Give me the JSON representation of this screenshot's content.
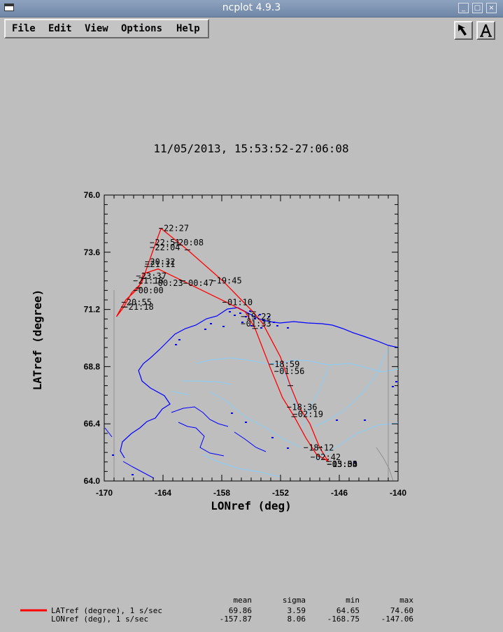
{
  "window": {
    "title": "ncplot 4.9.3"
  },
  "menu": {
    "items": [
      "File",
      "Edit",
      "View",
      "Options",
      "Help"
    ]
  },
  "toolbar": {
    "pointer_icon": "arrow-pointer-icon",
    "text_icon": "text-annotate-icon"
  },
  "chart_data": {
    "type": "line",
    "title": "11/05/2013, 15:53:52-27:06:08",
    "xlabel": "LONref (deg)",
    "ylabel": "LATref (degree)",
    "xlim": [
      -170,
      -140
    ],
    "ylim": [
      64.0,
      76.0
    ],
    "xticks": [
      "-170",
      "-164",
      "-158",
      "-152",
      "-146",
      "-140"
    ],
    "yticks": [
      "64.0",
      "66.4",
      "68.8",
      "71.2",
      "73.6",
      "76.0"
    ],
    "grid": false,
    "track_color": "#ff0000",
    "map_coast_color": "#0000ff",
    "map_river_color": "#87cefa",
    "track": [
      [
        -147.1,
        64.8
      ],
      [
        -148.0,
        65.4
      ],
      [
        -149.0,
        66.4
      ],
      [
        -150.1,
        67.1
      ],
      [
        -151.0,
        68.0
      ],
      [
        -152.0,
        69.2
      ],
      [
        -153.8,
        70.6
      ],
      [
        -154.8,
        71.1
      ],
      [
        -156.0,
        71.6
      ],
      [
        -157.9,
        72.4
      ],
      [
        -161.5,
        73.7
      ],
      [
        -164.2,
        74.6
      ],
      [
        -165.0,
        73.7
      ],
      [
        -165.6,
        73.0
      ],
      [
        -166.2,
        72.3
      ],
      [
        -167.2,
        71.9
      ],
      [
        -168.0,
        71.3
      ],
      [
        -168.75,
        70.9
      ],
      [
        -167.8,
        71.6
      ],
      [
        -166.5,
        72.1
      ],
      [
        -166.0,
        72.7
      ],
      [
        -164.5,
        72.9
      ],
      [
        -162.0,
        72.4
      ],
      [
        -157.5,
        71.5
      ],
      [
        -155.6,
        71.1
      ],
      [
        -154.6,
        70.4
      ],
      [
        -153.0,
        68.7
      ],
      [
        -151.8,
        67.5
      ],
      [
        -150.6,
        66.7
      ],
      [
        -149.4,
        65.8
      ],
      [
        -148.3,
        65.1
      ],
      [
        -147.06,
        64.82
      ]
    ],
    "labels": [
      {
        "t": "22:27",
        "x": -164.0,
        "y": 74.6
      },
      {
        "t": "22:51",
        "x": -164.9,
        "y": 74.0
      },
      {
        "t": "20:08",
        "x": -162.5,
        "y": 74.0
      },
      {
        "t": "22:04",
        "x": -164.9,
        "y": 73.8
      },
      {
        "t": "20:32",
        "x": -165.4,
        "y": 73.2
      },
      {
        "t": "21:11",
        "x": -165.4,
        "y": 73.1
      },
      {
        "t": "23:37",
        "x": -166.3,
        "y": 72.6
      },
      {
        "t": "21:18",
        "x": -166.6,
        "y": 72.4
      },
      {
        "t": "00:23",
        "x": -164.6,
        "y": 72.3
      },
      {
        "t": "00:47",
        "x": -161.5,
        "y": 72.3
      },
      {
        "t": "19:45",
        "x": -158.6,
        "y": 72.4
      },
      {
        "t": "00:00",
        "x": -166.6,
        "y": 72.0
      },
      {
        "t": "01:10",
        "x": -157.5,
        "y": 71.5
      },
      {
        "t": "20:55",
        "x": -167.8,
        "y": 71.5
      },
      {
        "t": "21:18",
        "x": -167.6,
        "y": 71.3
      },
      {
        "t": "19:22",
        "x": -155.6,
        "y": 70.9
      },
      {
        "t": "01:33",
        "x": -155.6,
        "y": 70.6
      },
      {
        "t": "18:59",
        "x": -152.7,
        "y": 68.9
      },
      {
        "t": "01:56",
        "x": -152.2,
        "y": 68.6
      },
      {
        "t": "18:36",
        "x": -150.9,
        "y": 67.1
      },
      {
        "t": "02:19",
        "x": -150.3,
        "y": 66.8
      },
      {
        "t": "18:12",
        "x": -149.2,
        "y": 65.4
      },
      {
        "t": "02:42",
        "x": -148.5,
        "y": 65.0
      },
      {
        "t": "03:03",
        "x": -146.8,
        "y": 64.7
      },
      {
        "t": "15:54",
        "x": -146.8,
        "y": 64.7
      },
      {
        "t": "03:30",
        "x": -146.8,
        "y": 64.7
      }
    ],
    "stats": {
      "headers": [
        "mean",
        "sigma",
        "min",
        "max"
      ],
      "rows": [
        {
          "name": "LATref (degree), 1 s/sec",
          "mean": "69.86",
          "sigma": "3.59",
          "min": "64.65",
          "max": "74.60",
          "color": "#ff0000"
        },
        {
          "name": "LONref (deg), 1 s/sec",
          "mean": "-157.87",
          "sigma": "8.06",
          "min": "-168.75",
          "max": "-147.06",
          "color": ""
        }
      ]
    }
  }
}
